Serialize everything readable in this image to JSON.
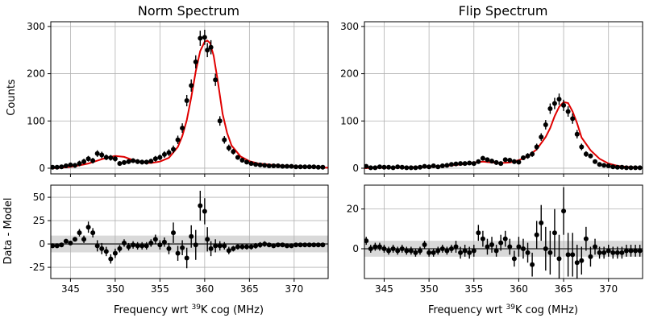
{
  "chart_data": [
    {
      "type": "scatter",
      "panel": "top-left",
      "title": "Norm Spectrum",
      "ylabel": "Counts",
      "xlim": [
        342.8,
        373.8
      ],
      "ylim": [
        -12,
        310
      ],
      "xticks": [
        345,
        350,
        355,
        360,
        365,
        370
      ],
      "yticks": [
        0,
        100,
        200,
        300
      ],
      "grid": true,
      "colors": {
        "points": "#000000",
        "fit": "#e00000"
      },
      "fit": {
        "x": [
          342.8,
          344,
          345,
          346,
          347,
          348,
          349,
          350,
          351,
          352,
          353,
          354,
          355,
          356,
          357,
          357.5,
          358,
          358.5,
          359,
          359.5,
          360,
          360.3,
          360.6,
          361,
          361.5,
          362,
          362.5,
          363,
          364,
          365,
          366,
          368,
          370,
          372,
          373.8
        ],
        "y": [
          0,
          1,
          3,
          6,
          10,
          16,
          22,
          26,
          24,
          17,
          12,
          11,
          14,
          22,
          45,
          68,
          102,
          150,
          205,
          248,
          268,
          270,
          265,
          238,
          180,
          115,
          75,
          48,
          25,
          15,
          10,
          6,
          4,
          2,
          1
        ]
      },
      "points": {
        "x": [
          343,
          343.5,
          344,
          344.5,
          345,
          345.5,
          346,
          346.5,
          347,
          347.5,
          348,
          348.5,
          349,
          349.5,
          350,
          350.5,
          351,
          351.5,
          352,
          352.5,
          353,
          353.5,
          354,
          354.5,
          355,
          355.5,
          356,
          356.5,
          357,
          357.5,
          358,
          358.5,
          359,
          359.5,
          360,
          360.3,
          360.7,
          361.2,
          361.7,
          362.2,
          362.7,
          363.2,
          363.7,
          364.2,
          364.7,
          365.2,
          365.7,
          366.2,
          366.7,
          367.2,
          367.7,
          368.2,
          368.7,
          369.2,
          369.7,
          370.2,
          370.7,
          371.2,
          371.7,
          372.2,
          372.7,
          373.2
        ],
        "y": [
          2,
          2,
          3,
          5,
          7,
          6,
          10,
          14,
          20,
          16,
          31,
          28,
          23,
          22,
          20,
          10,
          12,
          14,
          16,
          14,
          13,
          13,
          15,
          20,
          23,
          29,
          33,
          40,
          60,
          85,
          143,
          175,
          225,
          275,
          277,
          250,
          256,
          187,
          100,
          60,
          43,
          35,
          23,
          17,
          13,
          10,
          8,
          7,
          6,
          5,
          5,
          5,
          4,
          4,
          4,
          3,
          3,
          3,
          3,
          3,
          2,
          2
        ],
        "err": [
          3,
          3,
          4,
          4,
          5,
          5,
          6,
          6,
          6,
          6,
          7,
          7,
          6,
          6,
          6,
          5,
          5,
          5,
          5,
          5,
          5,
          5,
          5,
          6,
          6,
          7,
          7,
          8,
          9,
          10,
          12,
          13,
          14,
          16,
          16,
          15,
          15,
          13,
          10,
          8,
          7,
          6,
          5,
          5,
          4,
          4,
          4,
          4,
          3,
          3,
          3,
          3,
          3,
          3,
          3,
          3,
          3,
          3,
          3,
          3,
          3,
          3
        ]
      }
    },
    {
      "type": "scatter",
      "panel": "top-right",
      "title": "Flip Spectrum",
      "xlim": [
        342.8,
        373.8
      ],
      "ylim": [
        -12,
        310
      ],
      "xticks": [
        345,
        350,
        355,
        360,
        365,
        370
      ],
      "yticks": [
        0,
        100,
        200,
        300
      ],
      "grid": true,
      "colors": {
        "points": "#000000",
        "fit": "#e00000"
      },
      "fit": {
        "x": [
          342.8,
          344,
          346,
          348,
          350,
          352,
          354,
          355,
          356,
          357,
          358,
          359,
          360,
          361,
          362,
          363,
          363.5,
          364,
          364.5,
          365,
          365.5,
          366,
          366.5,
          367,
          368,
          369,
          370,
          371,
          372,
          373.8
        ],
        "y": [
          0,
          1,
          1,
          2,
          3,
          5,
          9,
          12,
          14,
          12,
          11,
          12,
          17,
          25,
          40,
          66,
          85,
          110,
          130,
          140,
          138,
          120,
          95,
          65,
          38,
          20,
          10,
          5,
          3,
          1
        ]
      },
      "points": {
        "x": [
          343,
          343.5,
          344,
          344.5,
          345,
          345.5,
          346,
          346.5,
          347,
          347.5,
          348,
          348.5,
          349,
          349.5,
          350,
          350.5,
          351,
          351.5,
          352,
          352.5,
          353,
          353.5,
          354,
          354.5,
          355,
          355.5,
          356,
          356.5,
          357,
          357.5,
          358,
          358.5,
          359,
          359.5,
          360,
          360.5,
          361,
          361.5,
          362,
          362.5,
          363,
          363.5,
          364,
          364.5,
          365,
          365.5,
          366,
          366.5,
          367,
          367.5,
          368,
          368.5,
          369,
          369.5,
          370,
          370.5,
          371,
          371.5,
          372,
          372.5,
          373,
          373.5
        ],
        "y": [
          4,
          1,
          1,
          3,
          2,
          2,
          1,
          3,
          2,
          1,
          1,
          1,
          2,
          4,
          3,
          5,
          3,
          5,
          6,
          8,
          9,
          10,
          10,
          11,
          10,
          14,
          21,
          18,
          15,
          12,
          10,
          18,
          17,
          14,
          13,
          22,
          26,
          30,
          45,
          66,
          92,
          126,
          137,
          146,
          133,
          120,
          105,
          72,
          45,
          30,
          26,
          14,
          8,
          6,
          5,
          3,
          2,
          2,
          1,
          1,
          1,
          1
        ],
        "err": [
          3,
          3,
          3,
          3,
          3,
          3,
          3,
          3,
          3,
          3,
          3,
          3,
          3,
          3,
          3,
          3,
          3,
          3,
          3,
          3,
          4,
          4,
          4,
          4,
          4,
          4,
          5,
          5,
          5,
          5,
          4,
          5,
          5,
          5,
          5,
          5,
          6,
          6,
          7,
          8,
          10,
          11,
          12,
          12,
          12,
          11,
          11,
          9,
          7,
          6,
          5,
          4,
          3,
          3,
          3,
          3,
          3,
          3,
          3,
          3,
          3,
          3
        ]
      }
    },
    {
      "type": "scatter",
      "panel": "bottom-left",
      "ylabel": "Data - Model",
      "xlabel_pre": "Frequency wrt ",
      "xlabel_sup": "39",
      "xlabel_post": "K cog (MHz)",
      "xlim": [
        342.8,
        373.8
      ],
      "ylim": [
        -37,
        63
      ],
      "xticks": [
        345,
        350,
        355,
        360,
        365,
        370
      ],
      "yticks": [
        -25,
        0,
        25,
        50
      ],
      "band": [
        -9,
        9
      ],
      "grid": true,
      "colors": {
        "points": "#000000",
        "zero_line": "#555555",
        "band": "#d9d9d9"
      },
      "points": {
        "x": [
          343,
          343.5,
          344,
          344.5,
          345,
          345.5,
          346,
          346.5,
          347,
          347.5,
          348,
          348.5,
          349,
          349.5,
          350,
          350.5,
          351,
          351.5,
          352,
          352.5,
          353,
          353.5,
          354,
          354.5,
          355,
          355.5,
          356,
          356.5,
          357,
          357.5,
          358,
          358.5,
          359,
          359.5,
          360,
          360.3,
          360.7,
          361.2,
          361.7,
          362.2,
          362.7,
          363.2,
          363.7,
          364.2,
          364.7,
          365.2,
          365.7,
          366.2,
          366.7,
          367.2,
          367.7,
          368.2,
          368.7,
          369.2,
          369.7,
          370.2,
          370.7,
          371.2,
          371.7,
          372.2,
          372.7,
          373.2
        ],
        "y": [
          -2,
          -2,
          -1,
          3,
          1,
          5,
          12,
          5,
          18,
          12,
          -2,
          -5,
          -8,
          -16,
          -10,
          -5,
          1,
          -3,
          -1,
          -2,
          -2,
          -2,
          1,
          5,
          -1,
          2,
          -5,
          12,
          -10,
          -4,
          -15,
          8,
          -1,
          41,
          35,
          5,
          -5,
          -2,
          -2,
          -2,
          -7,
          -5,
          -3,
          -3,
          -3,
          -3,
          -2,
          -1,
          0,
          -1,
          -2,
          -1,
          -1,
          -2,
          -2,
          -1,
          -1,
          -1,
          -1,
          -1,
          -1,
          -1
        ],
        "err": [
          2,
          2,
          2,
          2,
          2,
          2,
          4,
          4,
          6,
          5,
          6,
          6,
          5,
          5,
          5,
          4,
          4,
          4,
          4,
          4,
          4,
          4,
          4,
          5,
          5,
          5,
          6,
          11,
          8,
          8,
          11,
          12,
          16,
          16,
          14,
          13,
          8,
          7,
          5,
          4,
          4,
          3,
          3,
          3,
          3,
          3,
          3,
          3,
          3,
          2,
          2,
          2,
          2,
          2,
          2,
          2,
          2,
          2,
          2,
          2,
          2,
          2
        ]
      }
    },
    {
      "type": "scatter",
      "panel": "bottom-right",
      "xlabel_pre": "Frequency wrt ",
      "xlabel_sup": "39",
      "xlabel_post": "K cog (MHz)",
      "xlim": [
        342.8,
        373.8
      ],
      "ylim": [
        -15,
        32
      ],
      "xticks": [
        345,
        350,
        355,
        360,
        365,
        370
      ],
      "yticks": [
        0,
        20
      ],
      "band": [
        -4,
        4
      ],
      "grid": true,
      "colors": {
        "points": "#000000",
        "zero_line": "#555555",
        "band": "#d9d9d9"
      },
      "points": {
        "x": [
          343,
          343.5,
          344,
          344.5,
          345,
          345.5,
          346,
          346.5,
          347,
          347.5,
          348,
          348.5,
          349,
          349.5,
          350,
          350.5,
          351,
          351.5,
          352,
          352.5,
          353,
          353.5,
          354,
          354.5,
          355,
          355.5,
          356,
          356.5,
          357,
          357.5,
          358,
          358.5,
          359,
          359.5,
          360,
          360.5,
          361,
          361.5,
          362,
          362.5,
          363,
          363.5,
          364,
          364.5,
          365,
          365.5,
          366,
          366.5,
          367,
          367.5,
          368,
          368.5,
          369,
          369.5,
          370,
          370.5,
          371,
          371.5,
          372,
          372.5,
          373,
          373.5
        ],
        "y": [
          4,
          0,
          1,
          1,
          0,
          -1,
          0,
          -1,
          0,
          -1,
          -1,
          -2,
          -1,
          2,
          -2,
          -2,
          -1,
          0,
          -1,
          0,
          1,
          -2,
          -1,
          -2,
          -1,
          8,
          5,
          1,
          2,
          -1,
          3,
          5,
          1,
          -5,
          1,
          0,
          -2,
          -8,
          7,
          13,
          0,
          -2,
          8,
          -5,
          19,
          -3,
          -3,
          -7,
          -6,
          5,
          -4,
          1,
          -2,
          -2,
          -1,
          -2,
          -2,
          -2,
          -1,
          -1,
          -1,
          -1
        ],
        "err": [
          2,
          2,
          2,
          2,
          2,
          2,
          2,
          2,
          2,
          2,
          2,
          2,
          2,
          2,
          2,
          2,
          2,
          2,
          2,
          2,
          3,
          3,
          3,
          3,
          3,
          4,
          4,
          4,
          4,
          3,
          4,
          4,
          4,
          4,
          5,
          5,
          5,
          6,
          7,
          9,
          11,
          11,
          12,
          12,
          12,
          11,
          11,
          9,
          7,
          6,
          5,
          4,
          3,
          3,
          3,
          3,
          3,
          3,
          3,
          3,
          3,
          3
        ]
      }
    }
  ]
}
